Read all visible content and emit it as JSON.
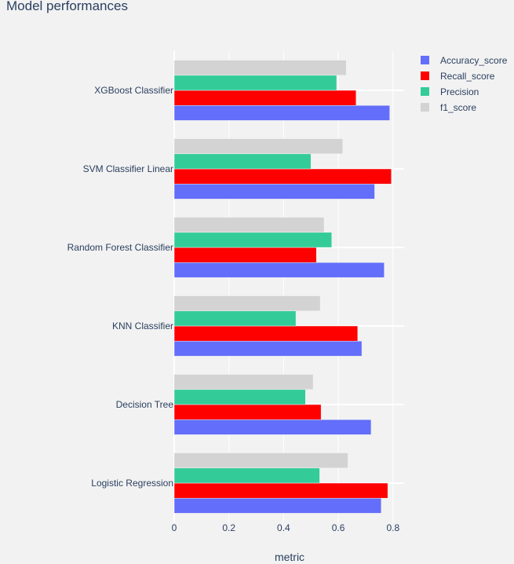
{
  "chart_data": {
    "type": "bar",
    "orientation": "horizontal",
    "title": "Model performances",
    "xlabel": "metric",
    "ylabel": "",
    "xlim": [
      0,
      0.835
    ],
    "xticks": [
      0,
      0.2,
      0.4,
      0.6,
      0.8
    ],
    "xtick_labels": [
      "0",
      "0.2",
      "0.4",
      "0.6",
      "0.8"
    ],
    "grid": true,
    "legend_position": "top-right",
    "categories": [
      "Logistic Regression",
      "Decision Tree",
      "KNN Classifier",
      "Random Forest Classifier",
      "SVM Classifier Linear",
      "XGBoost Classifier"
    ],
    "series": [
      {
        "name": "Accuracy_score",
        "color": "#636efa",
        "values": [
          0.757,
          0.72,
          0.686,
          0.768,
          0.733,
          0.788
        ]
      },
      {
        "name": "Recall_score",
        "color": "#ff0000",
        "values": [
          0.781,
          0.537,
          0.671,
          0.52,
          0.794,
          0.665
        ]
      },
      {
        "name": "Precision",
        "color": "#33cc99",
        "values": [
          0.532,
          0.48,
          0.445,
          0.576,
          0.5,
          0.594
        ]
      },
      {
        "name": "f1_score",
        "color": "#d3d3d3",
        "values": [
          0.635,
          0.508,
          0.534,
          0.548,
          0.616,
          0.629
        ]
      }
    ]
  }
}
